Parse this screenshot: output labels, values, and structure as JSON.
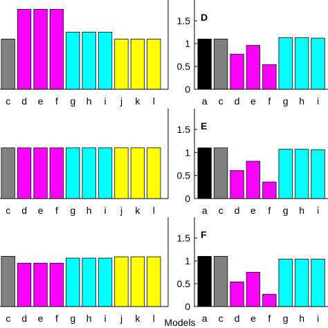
{
  "xlabel": "Models",
  "colors": {
    "black": "#000000",
    "gray": "#808080",
    "magenta": "#ff00ff",
    "cyan": "#00ffff",
    "yellow": "#ffff00"
  },
  "chart_data": [
    {
      "type": "bar",
      "panel": "left-top",
      "letter": "",
      "categories": [
        "c",
        "d",
        "e",
        "f",
        "g",
        "h",
        "i",
        "j",
        "k",
        "l"
      ],
      "values": [
        1.1,
        1.75,
        1.75,
        1.75,
        1.25,
        1.25,
        1.25,
        1.1,
        1.1,
        1.1
      ],
      "bar_colors": [
        "gray",
        "magenta",
        "magenta",
        "magenta",
        "cyan",
        "cyan",
        "cyan",
        "yellow",
        "yellow",
        "yellow"
      ],
      "ylim": [
        0,
        1.8
      ],
      "yticks": []
    },
    {
      "type": "bar",
      "panel": "right-top",
      "letter": "D",
      "categories": [
        "a",
        "c",
        "d",
        "e",
        "f",
        "g",
        "h",
        "i"
      ],
      "values": [
        1.1,
        1.1,
        0.77,
        0.96,
        0.54,
        1.13,
        1.13,
        1.12
      ],
      "bar_colors": [
        "black",
        "gray",
        "magenta",
        "magenta",
        "magenta",
        "cyan",
        "cyan",
        "cyan"
      ],
      "ylim": [
        0,
        1.8
      ],
      "yticks": [
        "0",
        "0.5",
        "1",
        "1.5"
      ]
    },
    {
      "type": "bar",
      "panel": "left-middle",
      "letter": "",
      "categories": [
        "c",
        "d",
        "e",
        "f",
        "g",
        "h",
        "i",
        "j",
        "k",
        "l"
      ],
      "values": [
        1.1,
        1.1,
        1.1,
        1.1,
        1.1,
        1.1,
        1.1,
        1.1,
        1.1,
        1.1
      ],
      "bar_colors": [
        "gray",
        "magenta",
        "magenta",
        "magenta",
        "cyan",
        "cyan",
        "cyan",
        "yellow",
        "yellow",
        "yellow"
      ],
      "ylim": [
        0,
        1.8
      ],
      "yticks": []
    },
    {
      "type": "bar",
      "panel": "right-middle",
      "letter": "E",
      "categories": [
        "a",
        "c",
        "d",
        "e",
        "f",
        "g",
        "h",
        "i"
      ],
      "values": [
        1.1,
        1.1,
        0.61,
        0.81,
        0.36,
        1.07,
        1.07,
        1.06
      ],
      "bar_colors": [
        "black",
        "gray",
        "magenta",
        "magenta",
        "magenta",
        "cyan",
        "cyan",
        "cyan"
      ],
      "ylim": [
        0,
        1.8
      ],
      "yticks": [
        "0",
        "0.5",
        "1",
        "1.5"
      ]
    },
    {
      "type": "bar",
      "panel": "left-bottom",
      "letter": "",
      "categories": [
        "c",
        "d",
        "e",
        "f",
        "g",
        "h",
        "i",
        "j",
        "k",
        "l"
      ],
      "values": [
        1.1,
        0.95,
        0.95,
        0.95,
        1.06,
        1.06,
        1.06,
        1.09,
        1.09,
        1.09
      ],
      "bar_colors": [
        "gray",
        "magenta",
        "magenta",
        "magenta",
        "cyan",
        "cyan",
        "cyan",
        "yellow",
        "yellow",
        "yellow"
      ],
      "ylim": [
        0,
        1.8
      ],
      "yticks": []
    },
    {
      "type": "bar",
      "panel": "right-bottom",
      "letter": "F",
      "categories": [
        "a",
        "c",
        "d",
        "e",
        "f",
        "g",
        "h",
        "i"
      ],
      "values": [
        1.1,
        1.1,
        0.54,
        0.75,
        0.27,
        1.04,
        1.04,
        1.04
      ],
      "bar_colors": [
        "black",
        "gray",
        "magenta",
        "magenta",
        "magenta",
        "cyan",
        "cyan",
        "cyan"
      ],
      "ylim": [
        0,
        1.8
      ],
      "yticks": [
        "0",
        "0.5",
        "1",
        "1.5"
      ]
    }
  ]
}
